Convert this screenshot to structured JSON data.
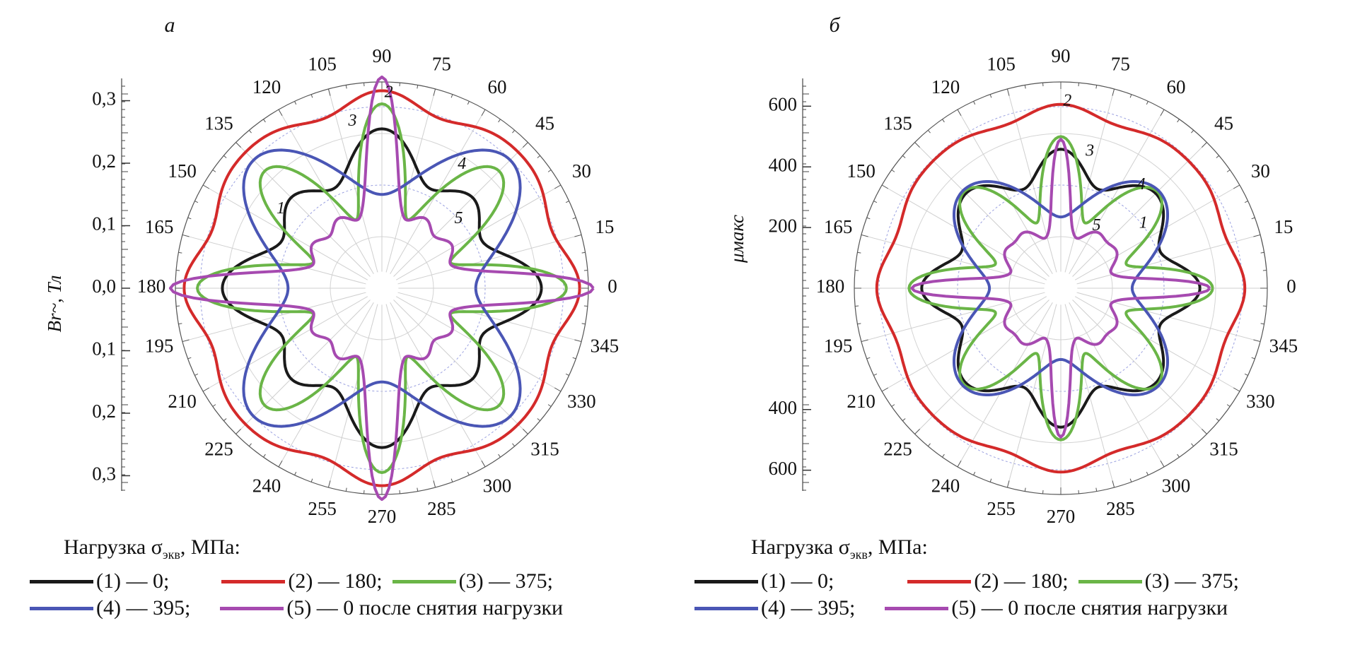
{
  "chart_data": [
    {
      "type": "polar",
      "panel_label": "а",
      "ylabel": "Br~, Тл",
      "ytick_labels": [
        "0,3",
        "0,2",
        "0,1",
        "0,0",
        "0,1",
        "0,2",
        "0,3"
      ],
      "ytick_values": [
        0.3,
        0.2,
        0.1,
        0.0,
        -0.1,
        -0.2,
        -0.3
      ],
      "rlim": [
        0,
        0.33
      ],
      "angle_ticks": [
        0,
        15,
        30,
        45,
        60,
        75,
        90,
        105,
        120,
        135,
        150,
        165,
        180,
        195,
        210,
        225,
        240,
        255,
        270,
        285,
        300,
        315,
        330,
        345
      ],
      "grid": true,
      "series": [
        {
          "name": "1",
          "color": "#1a1a1a",
          "base": 0.205,
          "terms": [
            [
              4,
              0.025,
              0
            ],
            [
              8,
              0.025,
              0
            ]
          ]
        },
        {
          "name": "2",
          "color": "#d42a2a",
          "base": 0.3,
          "terms": [
            [
              4,
              0.0,
              0
            ],
            [
              8,
              0.012,
              0
            ],
            [
              12,
              0.004,
              0
            ]
          ]
        },
        {
          "name": "3",
          "color": "#6ab547",
          "base": 0.2,
          "terms": [
            [
              4,
              0.0,
              0
            ],
            [
              8,
              0.08,
              0
            ],
            [
              12,
              0.015,
              0
            ]
          ]
        },
        {
          "name": "4",
          "color": "#4a56b5",
          "base": 0.215,
          "terms": [
            [
              4,
              -0.07,
              0
            ],
            [
              8,
              0.005,
              0
            ]
          ]
        },
        {
          "name": "5",
          "color": "#a64ab0",
          "base": 0.145,
          "terms": [
            [
              4,
              0.025,
              0
            ],
            [
              8,
              0.02,
              0
            ],
            [
              12,
              0.015,
              0
            ]
          ],
          "peak": [
            0.14,
            6
          ]
        }
      ],
      "curve_labels": [
        {
          "text": "1",
          "angle": 142,
          "r": 0.205
        },
        {
          "text": "2",
          "angle": 88,
          "r": 0.312
        },
        {
          "text": "3",
          "angle": 100,
          "r": 0.27
        },
        {
          "text": "4",
          "angle": 57,
          "r": 0.235
        },
        {
          "text": "5",
          "angle": 42,
          "r": 0.165
        }
      ]
    },
    {
      "type": "polar",
      "panel_label": "б",
      "ylabel": "μмакс",
      "ytick_labels": [
        "600",
        "400",
        "200",
        "400",
        "600"
      ],
      "ytick_values": [
        600,
        400,
        200,
        -400,
        -600
      ],
      "rlim": [
        0,
        680
      ],
      "angle_ticks": [
        0,
        15,
        30,
        45,
        60,
        75,
        90,
        105,
        120,
        135,
        150,
        165,
        180,
        195,
        210,
        225,
        240,
        255,
        270,
        285,
        300,
        315,
        330,
        345
      ],
      "grid": true,
      "series": [
        {
          "name": "1",
          "color": "#1a1a1a",
          "base": 400,
          "terms": [
            [
              4,
              0,
              0
            ],
            [
              8,
              50,
              0
            ],
            [
              12,
              8,
              0
            ]
          ]
        },
        {
          "name": "2",
          "color": "#d42a2a",
          "base": 585,
          "terms": [
            [
              4,
              0,
              0
            ],
            [
              8,
              15,
              0
            ],
            [
              12,
              6,
              0
            ]
          ]
        },
        {
          "name": "3",
          "color": "#6ab547",
          "base": 355,
          "terms": [
            [
              4,
              0,
              0
            ],
            [
              8,
              120,
              0
            ],
            [
              12,
              25,
              0
            ]
          ]
        },
        {
          "name": "4",
          "color": "#4a56b5",
          "base": 345,
          "terms": [
            [
              4,
              -110,
              0
            ],
            [
              8,
              0,
              0
            ]
          ]
        },
        {
          "name": "5",
          "color": "#a64ab0",
          "base": 220,
          "terms": [
            [
              4,
              0,
              0
            ],
            [
              8,
              25,
              0
            ],
            [
              12,
              18,
              0
            ]
          ],
          "peak": [
            240,
            7
          ]
        }
      ],
      "curve_labels": [
        {
          "text": "1",
          "angle": 38,
          "r": 345
        },
        {
          "text": "2",
          "angle": 88,
          "r": 615
        },
        {
          "text": "3",
          "angle": 78,
          "r": 460
        },
        {
          "text": "4",
          "angle": 52,
          "r": 430
        },
        {
          "text": "5",
          "angle": 60,
          "r": 235
        }
      ]
    }
  ],
  "legend": {
    "title": "Нагрузка σ",
    "title_sub": "экв",
    "title_suffix": ", МПа:",
    "items": [
      {
        "color": "#1a1a1a",
        "label": "(1) — 0;"
      },
      {
        "color": "#d42a2a",
        "label": "(2) — 180;"
      },
      {
        "color": "#6ab547",
        "label": "(3) — 375;"
      },
      {
        "color": "#4a56b5",
        "label": "(4) — 395;"
      },
      {
        "color": "#a64ab0",
        "label": "(5) — 0 после снятия нагрузки"
      }
    ]
  }
}
